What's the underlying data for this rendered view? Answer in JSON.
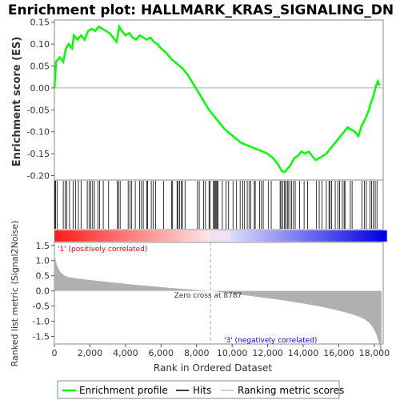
{
  "chart_data": {
    "title": "Enrichment plot: HALLMARK_KRAS_SIGNALING_DN",
    "type": "line",
    "x_axis": {
      "label": "Rank in Ordered Dataset",
      "range": [
        0,
        18500
      ],
      "ticks": [
        0,
        2000,
        4000,
        6000,
        8000,
        10000,
        12000,
        14000,
        16000,
        18000
      ],
      "tick_labels": [
        "0",
        "2,000",
        "4,000",
        "6,000",
        "8,000",
        "10,000",
        "12,000",
        "14,000",
        "16,000",
        "18,000"
      ]
    },
    "es_panel": {
      "ylabel": "Enrichment score (ES)",
      "ylim": [
        -0.21,
        0.155
      ],
      "ticks": [
        0.15,
        0.1,
        0.05,
        0.0,
        -0.05,
        -0.1,
        -0.15,
        -0.2
      ],
      "tick_labels": [
        "0.15",
        "0.10",
        "0.05",
        "0.00",
        "-0.05",
        "-0.10",
        "-0.15",
        "-0.20"
      ],
      "series": [
        {
          "name": "Enrichment profile",
          "color": "#00ff00",
          "x": [
            0,
            100,
            300,
            500,
            650,
            800,
            1000,
            1100,
            1300,
            1500,
            1700,
            1900,
            2100,
            2300,
            2500,
            2700,
            2900,
            3100,
            3300,
            3500,
            3650,
            3800,
            4000,
            4200,
            4400,
            4600,
            4800,
            5000,
            5200,
            5400,
            5600,
            5800,
            6000,
            6300,
            6600,
            6900,
            7200,
            7500,
            7800,
            8100,
            8400,
            8700,
            9000,
            9300,
            9600,
            9900,
            10200,
            10500,
            10800,
            11100,
            11400,
            11700,
            12000,
            12300,
            12600,
            12800,
            12950,
            13100,
            13300,
            13500,
            13700,
            13900,
            14100,
            14300,
            14500,
            14700,
            14900,
            15100,
            15300,
            15500,
            15700,
            15900,
            16100,
            16300,
            16500,
            16700,
            16900,
            17100,
            17300,
            17500,
            17700,
            17800,
            17900,
            18000,
            18100,
            18200,
            18300
          ],
          "y": [
            0.0,
            0.06,
            0.07,
            0.06,
            0.09,
            0.1,
            0.09,
            0.12,
            0.11,
            0.12,
            0.11,
            0.13,
            0.135,
            0.13,
            0.14,
            0.135,
            0.13,
            0.125,
            0.115,
            0.105,
            0.14,
            0.13,
            0.12,
            0.125,
            0.115,
            0.11,
            0.12,
            0.115,
            0.11,
            0.115,
            0.105,
            0.1,
            0.09,
            0.08,
            0.065,
            0.055,
            0.045,
            0.03,
            0.01,
            -0.01,
            -0.03,
            -0.05,
            -0.065,
            -0.08,
            -0.095,
            -0.105,
            -0.115,
            -0.125,
            -0.13,
            -0.135,
            -0.14,
            -0.145,
            -0.15,
            -0.16,
            -0.175,
            -0.19,
            -0.192,
            -0.185,
            -0.175,
            -0.16,
            -0.155,
            -0.145,
            -0.15,
            -0.145,
            -0.155,
            -0.165,
            -0.16,
            -0.155,
            -0.15,
            -0.14,
            -0.13,
            -0.12,
            -0.11,
            -0.1,
            -0.09,
            -0.095,
            -0.1,
            -0.11,
            -0.085,
            -0.07,
            -0.05,
            -0.035,
            -0.025,
            -0.01,
            0.005,
            0.015,
            0.005
          ]
        }
      ]
    },
    "hits": [
      30,
      70,
      150,
      500,
      600,
      700,
      850,
      1050,
      1200,
      1350,
      1500,
      1850,
      1950,
      2050,
      2150,
      2250,
      2450,
      2550,
      2750,
      3050,
      3550,
      3600,
      3700,
      4150,
      4250,
      4350,
      4550,
      4800,
      4900,
      5000,
      5200,
      5250,
      5450,
      5550,
      5700,
      6150,
      6600,
      6650,
      6900,
      6950,
      7050,
      7150,
      7200,
      7350,
      8050,
      8150,
      8400,
      8500,
      8700,
      8750,
      8950,
      9000,
      9050,
      9100,
      9150,
      9200,
      9450,
      9650,
      9800,
      10050,
      10250,
      10450,
      10600,
      10700,
      10850,
      10950,
      11050,
      11250,
      11300,
      11550,
      11650,
      11750,
      12050,
      12200,
      12700,
      12750,
      12850,
      12950,
      13000,
      13100,
      13150,
      13250,
      13350,
      13450,
      13550,
      13800,
      14050,
      14250,
      14750,
      14900,
      15050,
      15300,
      15450,
      15500,
      15600,
      15800,
      15950,
      16050,
      16200,
      16300,
      16350,
      16650,
      16750,
      17300,
      17450,
      17550,
      17750,
      17850,
      17950,
      18050,
      18150
    ],
    "metric_panel": {
      "ylabel": "Ranked list metric (Signal2Noise)",
      "ylim": [
        -1.75,
        1.6
      ],
      "ticks": [
        1.5,
        1.0,
        0.5,
        0.0,
        -0.5,
        -1.0,
        -1.5
      ],
      "tick_labels": [
        "1.5",
        "1.0",
        "0.5",
        "0.0",
        "-0.5",
        "-1.0",
        "-1.5"
      ],
      "zero_cross": 8787,
      "zero_cross_label": "Zero cross at 8787",
      "pos_label": "'1' (positively correlated)",
      "neg_label": "'3' (negatively correlated)"
    },
    "legend": {
      "items": [
        {
          "label": "Enrichment profile",
          "color": "#00ff00"
        },
        {
          "label": "Hits",
          "color": "#000000"
        },
        {
          "label": "Ranking metric scores",
          "color": "#c0c0c0"
        }
      ]
    },
    "colors": {
      "profile": "#00ff00",
      "pos_annotation": "#ff0000",
      "neg_annotation": "#0000ff",
      "metric_fill": "#b0b0b0"
    }
  }
}
